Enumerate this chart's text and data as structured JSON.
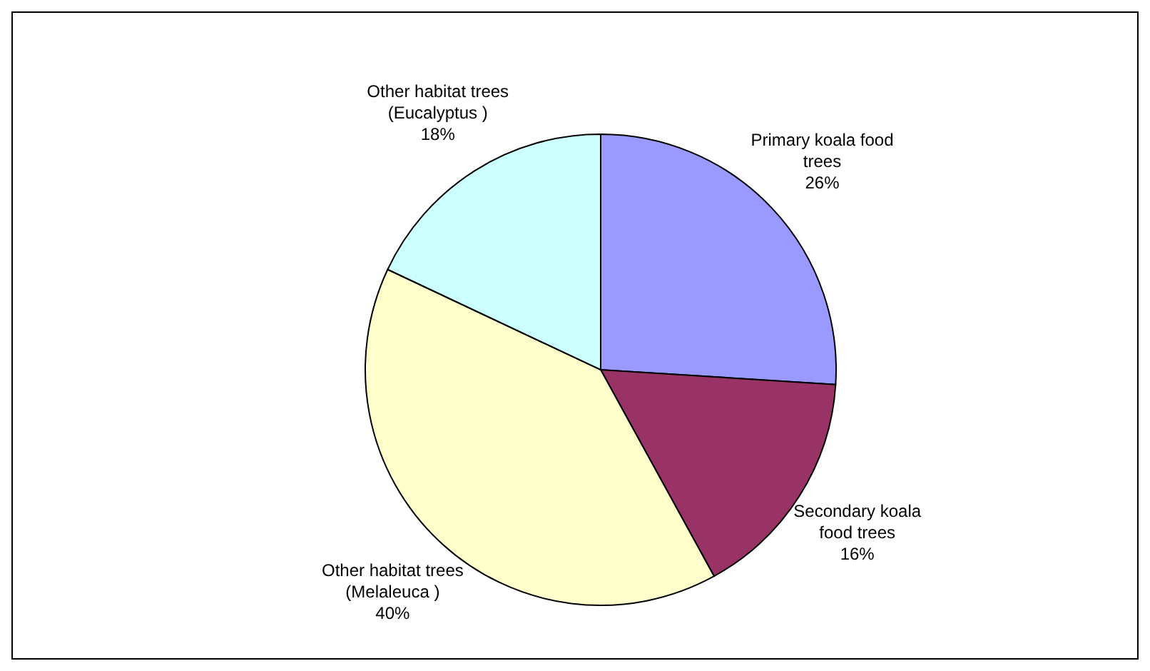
{
  "chart_data": {
    "type": "pie",
    "categories": [
      "Primary koala food trees",
      "Secondary koala food trees",
      "Other habitat trees (Melaleuca )",
      "Other habitat trees (Eucalyptus )"
    ],
    "values": [
      26,
      16,
      40,
      18
    ],
    "colors": [
      "#9999ff",
      "#993366",
      "#ffffcc",
      "#ccffff"
    ],
    "value_labels": [
      "26%",
      "16%",
      "40%",
      "18%"
    ],
    "legend": false
  }
}
